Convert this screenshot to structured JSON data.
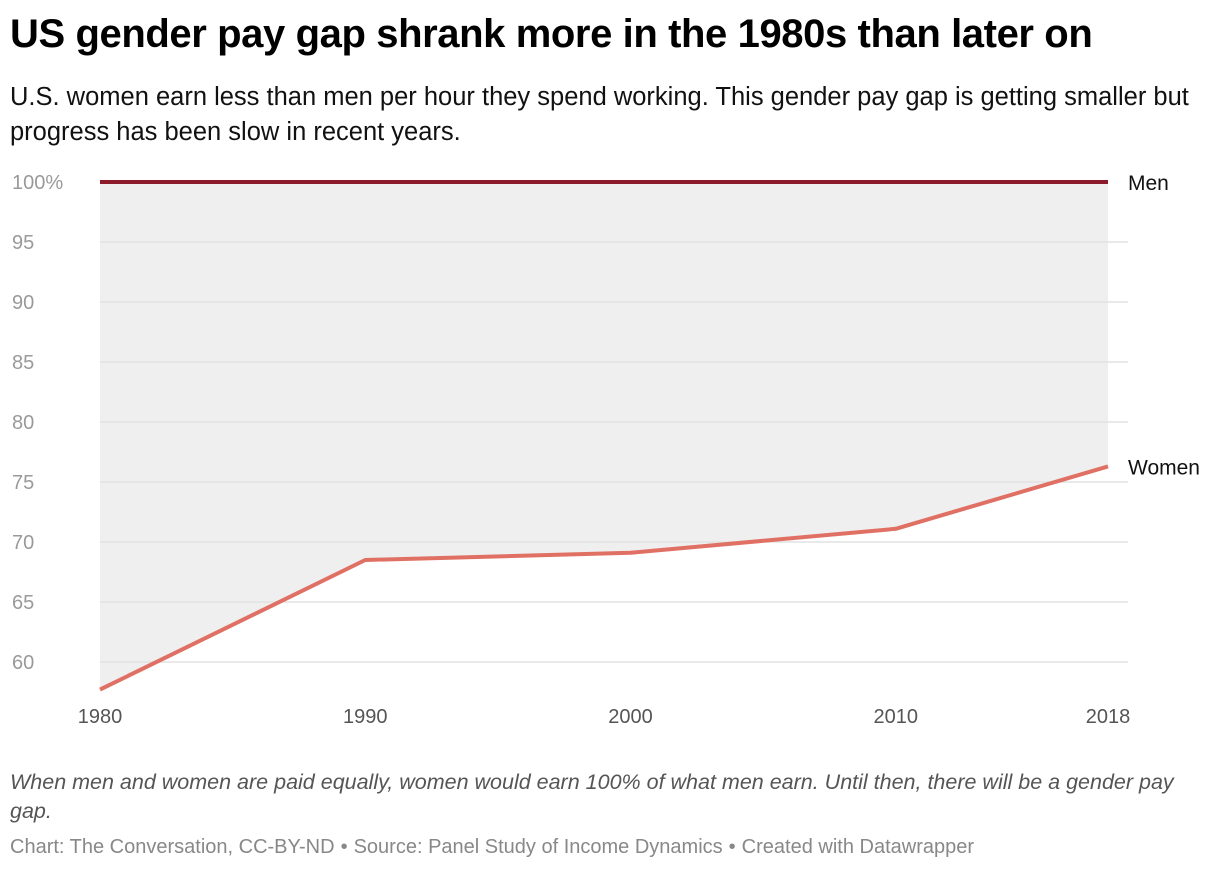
{
  "title": "US gender pay gap shrank more in the 1980s than later on",
  "subtitle": "U.S. women earn less than men per hour they spend working. This gender pay gap is getting smaller but progress has been slow in recent years.",
  "note": "When men and women are paid equally, women would earn 100% of what men earn. Until then, there will be a gender pay gap.",
  "credits": {
    "chart": "Chart: The Conversation, CC-BY-ND",
    "source": "Source: Panel Study of Income Dynamics",
    "tool": "Created with Datawrapper",
    "separator": "•"
  },
  "chart_data": {
    "type": "area",
    "x": [
      1980,
      1990,
      2000,
      2010,
      2018
    ],
    "xticks": [
      "1980",
      "1990",
      "2000",
      "2010",
      "2018"
    ],
    "yticks": [
      {
        "value": 100,
        "label": "100%"
      },
      {
        "value": 95,
        "label": "95"
      },
      {
        "value": 90,
        "label": "90"
      },
      {
        "value": 85,
        "label": "85"
      },
      {
        "value": 80,
        "label": "80"
      },
      {
        "value": 75,
        "label": "75"
      },
      {
        "value": 70,
        "label": "70"
      },
      {
        "value": 65,
        "label": "65"
      },
      {
        "value": 60,
        "label": "60"
      }
    ],
    "ylim": [
      57.7,
      100
    ],
    "grid": true,
    "gap_fill": "between series",
    "series": [
      {
        "name": "Men",
        "values": [
          100,
          100,
          100,
          100,
          100
        ],
        "color": "#8b1a2b"
      },
      {
        "name": "Women",
        "values": [
          57.7,
          68.5,
          69.1,
          71.1,
          76.3
        ],
        "color": "#e07064"
      }
    ],
    "colors": {
      "gap_fill": "#efefef",
      "grid": "#e2e2e2",
      "tick_label": "#9a9a9a",
      "axis_label": "#555555"
    }
  }
}
